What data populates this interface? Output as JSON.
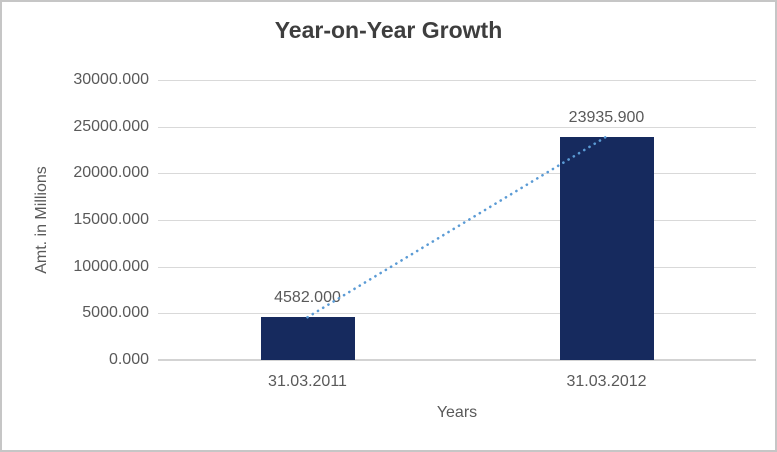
{
  "chart_data": {
    "type": "bar",
    "title": "Year-on-Year Growth",
    "xlabel": "Years",
    "ylabel": "Amt. in Millions",
    "categories": [
      "31.03.2011",
      "31.03.2012"
    ],
    "values": [
      4582,
      23935.9
    ],
    "data_labels": [
      "4582.000",
      "23935.900"
    ],
    "ylim": [
      0,
      30000
    ],
    "yticks": {
      "values": [
        0,
        5000,
        10000,
        15000,
        20000,
        25000,
        30000
      ],
      "labels": [
        "0.000",
        "5000.000",
        "10000.000",
        "15000.000",
        "20000.000",
        "25000.000",
        "30000.000"
      ]
    },
    "grid": true,
    "legend": "none",
    "trendline": {
      "type": "linear",
      "style": "dotted",
      "color": "#5B9BD5"
    },
    "colors": {
      "bar": "#162A5E",
      "gridline": "#D9D9D9",
      "axis_line": "#D3D3D3",
      "label_text": "#595959",
      "title_text": "#3E3E3E",
      "border": "#C6C6C6",
      "background": "#FFFFFF"
    }
  }
}
